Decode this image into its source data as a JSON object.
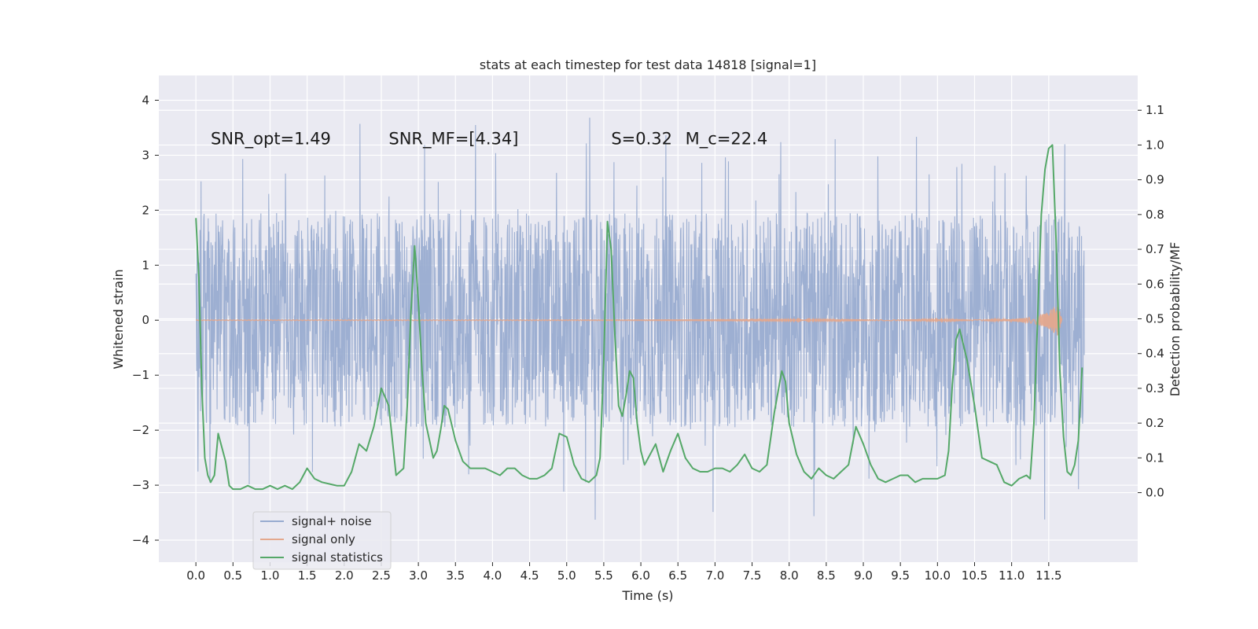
{
  "chart_data": {
    "type": "line",
    "title": "stats at each timestep for test data 14818 [signal=1]",
    "xlabel": "Time (s)",
    "ylabel": "Whitened strain",
    "ylabel_right": "Detection probability/MF",
    "xlim": [
      -0.5,
      12.7
    ],
    "ylim": [
      -4.4,
      4.45
    ],
    "ylim_right": [
      -0.2,
      1.2
    ],
    "x_ticks": [
      "0.0",
      "0.5",
      "1.0",
      "1.5",
      "2.0",
      "2.5",
      "3.0",
      "3.5",
      "4.0",
      "4.5",
      "5.0",
      "5.5",
      "6.0",
      "6.5",
      "7.0",
      "7.5",
      "8.0",
      "8.5",
      "9.0",
      "9.5",
      "10.0",
      "10.5",
      "11.0",
      "11.5"
    ],
    "y_ticks": [
      "4",
      "3",
      "2",
      "1",
      "0",
      "−1",
      "−2",
      "−3",
      "−4"
    ],
    "y_ticks_right": [
      "1.1",
      "1.0",
      "0.9",
      "0.8",
      "0.7",
      "0.6",
      "0.5",
      "0.4",
      "0.3",
      "0.2",
      "0.1",
      "0.0"
    ],
    "grid": true,
    "legend_position": "lower-left",
    "annotations": [
      {
        "label": "SNR_opt=1.49",
        "x": 0.2,
        "y": 3.2
      },
      {
        "label": "SNR_MF=[4.34]",
        "x": 2.6,
        "y": 3.2
      },
      {
        "label": "S=0.32",
        "x": 5.6,
        "y": 3.2
      },
      {
        "label": "M_c=22.4",
        "x": 6.6,
        "y": 3.2
      }
    ],
    "series": [
      {
        "name": "signal+ noise",
        "color": "#99acd0",
        "axis": "left",
        "t_range": [
          0.0,
          11.98
        ],
        "envelope": {
          "band_core": [
            -1.25,
            1.3
          ],
          "band_mid": [
            -2.1,
            1.95
          ],
          "max_spike": 4.07,
          "min_spike": -3.9
        }
      },
      {
        "name": "signal only",
        "color": "#e4a88d",
        "axis": "left",
        "x": [
          0.0,
          10.5,
          11.0,
          11.2,
          11.35,
          11.5,
          11.62,
          11.68
        ],
        "amplitude": [
          0.005,
          0.01,
          0.02,
          0.04,
          0.08,
          0.15,
          0.3,
          0.0
        ]
      },
      {
        "name": "signal statistics",
        "color": "#55a868",
        "axis": "right",
        "x": [
          0.0,
          0.04,
          0.08,
          0.12,
          0.16,
          0.2,
          0.25,
          0.3,
          0.35,
          0.4,
          0.45,
          0.5,
          0.55,
          0.6,
          0.7,
          0.8,
          0.9,
          1.0,
          1.1,
          1.2,
          1.3,
          1.4,
          1.5,
          1.6,
          1.7,
          1.8,
          1.9,
          2.0,
          2.1,
          2.2,
          2.3,
          2.4,
          2.5,
          2.6,
          2.7,
          2.75,
          2.8,
          2.85,
          2.9,
          2.95,
          3.0,
          3.05,
          3.1,
          3.15,
          3.2,
          3.25,
          3.3,
          3.35,
          3.4,
          3.5,
          3.6,
          3.7,
          3.8,
          3.9,
          4.0,
          4.1,
          4.2,
          4.3,
          4.4,
          4.5,
          4.6,
          4.7,
          4.8,
          4.9,
          5.0,
          5.1,
          5.2,
          5.3,
          5.4,
          5.45,
          5.5,
          5.55,
          5.6,
          5.65,
          5.7,
          5.75,
          5.8,
          5.85,
          5.9,
          5.95,
          6.0,
          6.05,
          6.1,
          6.2,
          6.3,
          6.4,
          6.5,
          6.6,
          6.7,
          6.8,
          6.9,
          7.0,
          7.1,
          7.2,
          7.3,
          7.4,
          7.5,
          7.6,
          7.7,
          7.8,
          7.9,
          7.95,
          8.0,
          8.1,
          8.2,
          8.3,
          8.4,
          8.5,
          8.6,
          8.7,
          8.8,
          8.9,
          9.0,
          9.1,
          9.2,
          9.3,
          9.4,
          9.5,
          9.6,
          9.7,
          9.8,
          9.9,
          10.0,
          10.1,
          10.15,
          10.2,
          10.25,
          10.3,
          10.4,
          10.5,
          10.6,
          10.7,
          10.8,
          10.9,
          11.0,
          11.1,
          11.2,
          11.25,
          11.3,
          11.35,
          11.4,
          11.45,
          11.5,
          11.55,
          11.6,
          11.65,
          11.7,
          11.75,
          11.8,
          11.85,
          11.9,
          11.95
        ],
        "values": [
          0.79,
          0.62,
          0.3,
          0.1,
          0.05,
          0.03,
          0.05,
          0.17,
          0.13,
          0.09,
          0.02,
          0.01,
          0.01,
          0.01,
          0.02,
          0.01,
          0.01,
          0.02,
          0.01,
          0.02,
          0.01,
          0.03,
          0.07,
          0.04,
          0.03,
          0.025,
          0.02,
          0.02,
          0.06,
          0.14,
          0.12,
          0.19,
          0.3,
          0.25,
          0.05,
          0.06,
          0.07,
          0.25,
          0.52,
          0.71,
          0.55,
          0.35,
          0.2,
          0.15,
          0.1,
          0.12,
          0.18,
          0.25,
          0.24,
          0.15,
          0.09,
          0.07,
          0.07,
          0.07,
          0.06,
          0.05,
          0.07,
          0.07,
          0.05,
          0.04,
          0.04,
          0.05,
          0.07,
          0.17,
          0.16,
          0.08,
          0.04,
          0.03,
          0.05,
          0.1,
          0.38,
          0.78,
          0.7,
          0.45,
          0.25,
          0.22,
          0.28,
          0.35,
          0.33,
          0.2,
          0.12,
          0.08,
          0.1,
          0.14,
          0.06,
          0.12,
          0.17,
          0.1,
          0.07,
          0.06,
          0.06,
          0.07,
          0.07,
          0.06,
          0.08,
          0.11,
          0.07,
          0.06,
          0.08,
          0.23,
          0.35,
          0.32,
          0.2,
          0.11,
          0.06,
          0.04,
          0.07,
          0.05,
          0.04,
          0.06,
          0.08,
          0.19,
          0.14,
          0.08,
          0.04,
          0.03,
          0.04,
          0.05,
          0.05,
          0.03,
          0.04,
          0.04,
          0.04,
          0.05,
          0.12,
          0.31,
          0.44,
          0.47,
          0.38,
          0.25,
          0.1,
          0.09,
          0.08,
          0.03,
          0.02,
          0.04,
          0.05,
          0.04,
          0.2,
          0.5,
          0.8,
          0.93,
          0.99,
          1.0,
          0.72,
          0.35,
          0.16,
          0.06,
          0.05,
          0.08,
          0.15,
          0.36
        ]
      }
    ]
  }
}
